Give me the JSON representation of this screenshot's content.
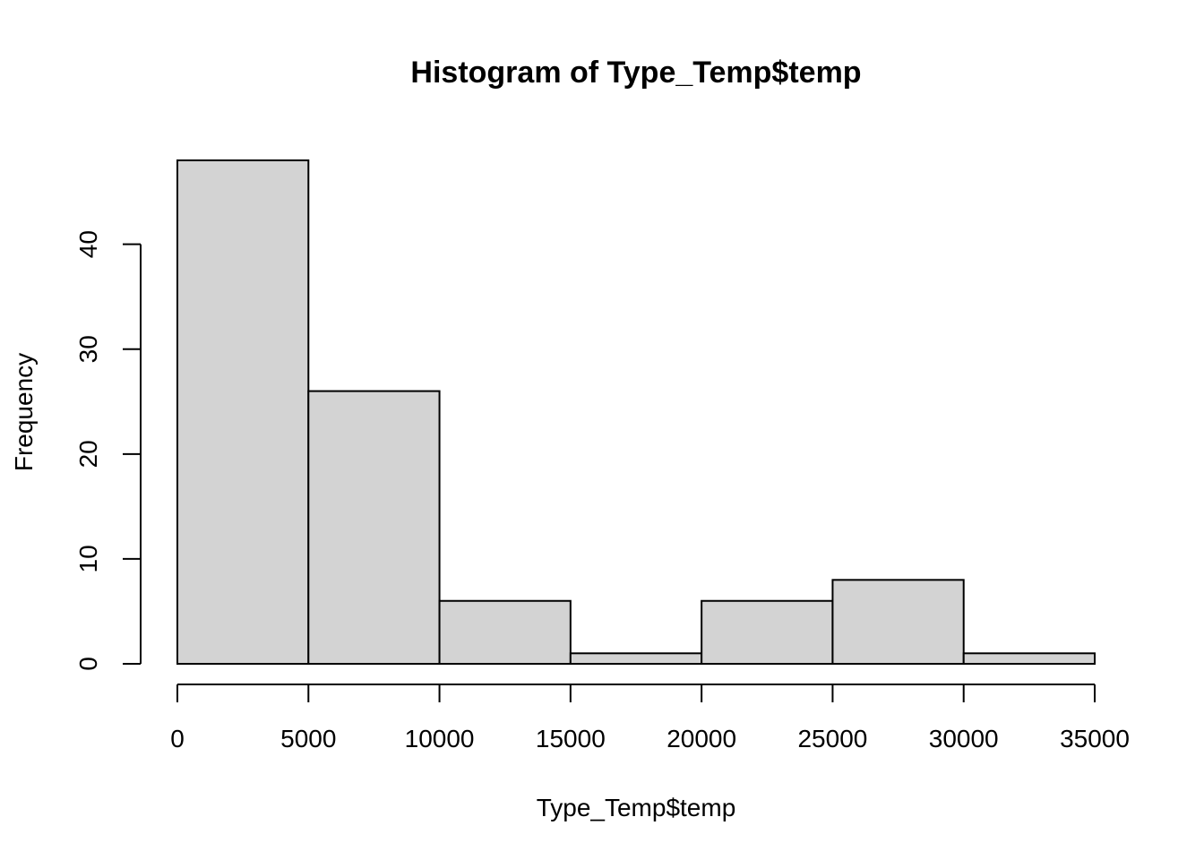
{
  "chart_data": {
    "type": "bar",
    "title": "Histogram of Type_Temp$temp",
    "xlabel": "Type_Temp$temp",
    "ylabel": "Frequency",
    "bins": [
      {
        "from": 0,
        "to": 5000,
        "count": 48
      },
      {
        "from": 5000,
        "to": 10000,
        "count": 26
      },
      {
        "from": 10000,
        "to": 15000,
        "count": 6
      },
      {
        "from": 15000,
        "to": 20000,
        "count": 1
      },
      {
        "from": 20000,
        "to": 25000,
        "count": 6
      },
      {
        "from": 25000,
        "to": 30000,
        "count": 8
      },
      {
        "from": 30000,
        "to": 35000,
        "count": 1
      }
    ],
    "x_ticks": [
      0,
      5000,
      10000,
      15000,
      20000,
      25000,
      30000,
      35000
    ],
    "y_ticks": [
      0,
      10,
      20,
      30,
      40
    ],
    "xlim": [
      0,
      35000
    ],
    "ylim": [
      0,
      48
    ],
    "bar_fill": "#d3d3d3",
    "bar_stroke": "#000000",
    "grid": false,
    "legend": "none"
  }
}
